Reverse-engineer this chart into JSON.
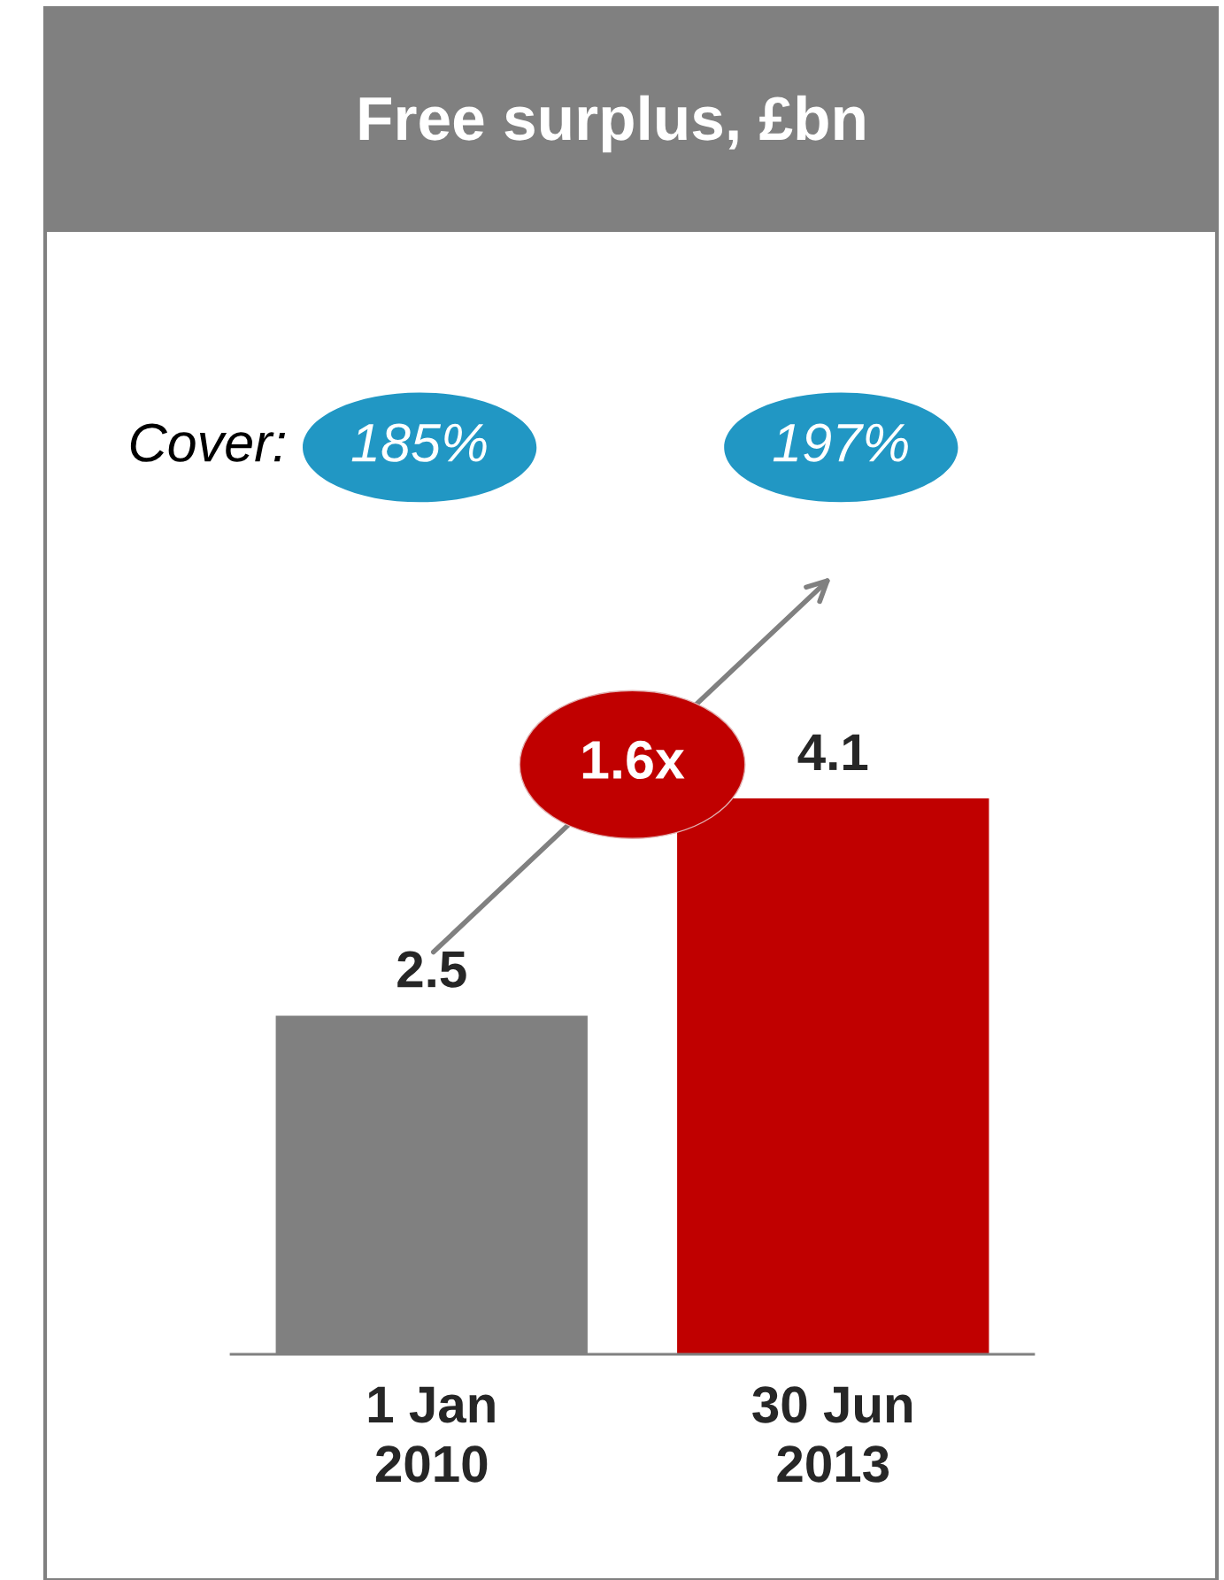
{
  "chart_data": {
    "type": "bar",
    "title": "Free surplus, £bn",
    "categories": [
      "1 Jan\n2010",
      "30 Jun\n2013"
    ],
    "values": [
      2.5,
      4.1
    ],
    "colors": [
      "#808080",
      "#c00000"
    ],
    "data_labels": true,
    "annotations": [
      "Cover:",
      "185%",
      "197%",
      "1.6x"
    ]
  }
}
